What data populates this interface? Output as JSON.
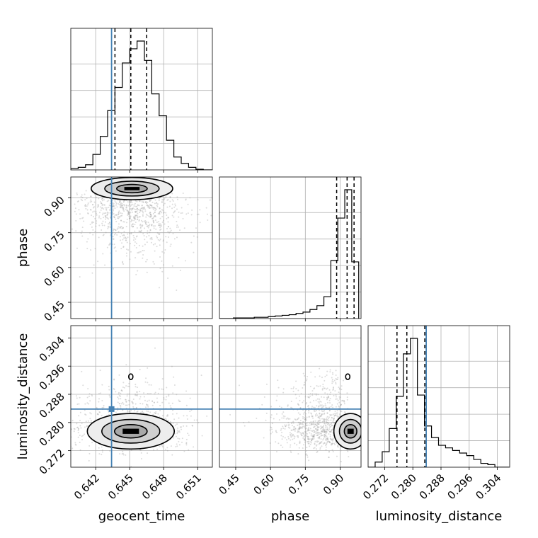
{
  "chart_data": {
    "type": "corner",
    "parameters": [
      "geocent_time",
      "phase",
      "luminosity_distance"
    ],
    "truths": {
      "geocent_time": 0.6434,
      "phase": null,
      "luminosity_distance": 0.2838
    },
    "truth_color": "#4682b4",
    "grid": true,
    "ranges": {
      "geocent_time": [
        0.6398,
        0.6523
      ],
      "phase": [
        0.38,
        0.99
      ],
      "luminosity_distance": [
        0.2673,
        0.3075
      ]
    },
    "ticks": {
      "geocent_time": {
        "values": [
          0.642,
          0.645,
          0.648,
          0.651
        ],
        "labels": [
          "0.642",
          "0.645",
          "0.648",
          "0.651"
        ]
      },
      "phase": {
        "values": [
          0.45,
          0.6,
          0.75,
          0.9
        ],
        "labels": [
          "0.45",
          "0.60",
          "0.75",
          "0.90"
        ]
      },
      "luminosity_distance": {
        "values": [
          0.272,
          0.28,
          0.288,
          0.296,
          0.304
        ],
        "labels": [
          "0.272",
          "0.280",
          "0.288",
          "0.296",
          "0.304"
        ]
      }
    },
    "quantiles": {
      "geocent_time": [
        0.6437,
        0.6451,
        0.6465
      ],
      "phase": [
        0.885,
        0.93,
        0.96
      ],
      "luminosity_distance": [
        0.2755,
        0.2783,
        0.2834
      ]
    },
    "histograms": {
      "geocent_time": {
        "edges": [
          0.6398,
          0.64045,
          0.6411,
          0.64175,
          0.6424,
          0.64305,
          0.6437,
          0.64435,
          0.645,
          0.64565,
          0.6463,
          0.64695,
          0.6476,
          0.64825,
          0.6489,
          0.64955,
          0.6502,
          0.65085,
          0.6515,
          0.65215,
          0.6528
        ],
        "counts": [
          0.01,
          0.02,
          0.04,
          0.12,
          0.26,
          0.46,
          0.64,
          0.83,
          0.94,
          1.0,
          0.85,
          0.59,
          0.42,
          0.23,
          0.1,
          0.05,
          0.02,
          0.005,
          0.0,
          0.0
        ]
      },
      "phase": {
        "edges": [
          0.38,
          0.41,
          0.44,
          0.47,
          0.5,
          0.53,
          0.56,
          0.59,
          0.62,
          0.65,
          0.68,
          0.71,
          0.74,
          0.77,
          0.8,
          0.83,
          0.86,
          0.89,
          0.92,
          0.95,
          0.98
        ],
        "counts": [
          0.0,
          0.0,
          0.005,
          0.005,
          0.005,
          0.01,
          0.01,
          0.015,
          0.02,
          0.025,
          0.03,
          0.04,
          0.05,
          0.07,
          0.1,
          0.17,
          0.45,
          0.78,
          1.0,
          0.44
        ]
      },
      "luminosity_distance": {
        "edges": [
          0.2673,
          0.2693,
          0.2713,
          0.2733,
          0.2753,
          0.2773,
          0.2793,
          0.2813,
          0.2833,
          0.2853,
          0.2873,
          0.2893,
          0.2913,
          0.2933,
          0.2953,
          0.2973,
          0.2993,
          0.3013,
          0.3033,
          0.3053,
          0.3073
        ],
        "counts": [
          0.0,
          0.04,
          0.12,
          0.3,
          0.55,
          0.88,
          1.0,
          0.56,
          0.32,
          0.23,
          0.17,
          0.15,
          0.13,
          0.11,
          0.09,
          0.06,
          0.03,
          0.02,
          0.0,
          0.0
        ]
      }
    },
    "joint": [
      {
        "x": "geocent_time",
        "y": "phase",
        "mode": [
          0.6452,
          0.94
        ],
        "spread": [
          0.0015,
          0.02
        ]
      },
      {
        "x": "geocent_time",
        "y": "luminosity_distance",
        "mode": [
          0.6451,
          0.2775
        ],
        "spread": [
          0.0016,
          0.0021
        ]
      },
      {
        "x": "phase",
        "y": "luminosity_distance",
        "mode": [
          0.945,
          0.2775
        ],
        "spread": [
          0.03,
          0.0021
        ]
      }
    ],
    "marker": {
      "x": "geocent_time",
      "y": "luminosity_distance",
      "at": [
        0.6434,
        0.2838
      ]
    }
  }
}
